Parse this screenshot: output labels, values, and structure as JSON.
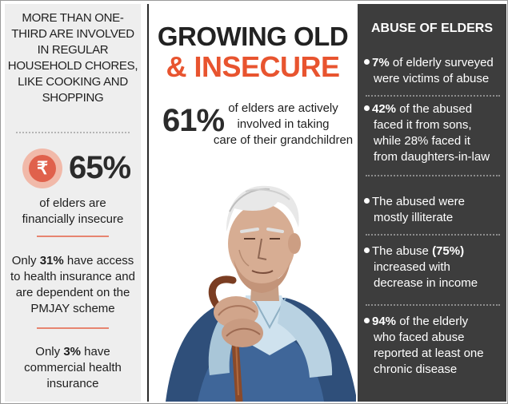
{
  "left": {
    "chores": [
      "MORE THAN ONE-",
      "THIRD ARE INVOLVED",
      "IN REGULAR",
      "HOUSEHOLD CHORES,",
      "LIKE COOKING AND",
      "SHOPPING"
    ],
    "rupee_symbol": "₹",
    "financial_pct": "65%",
    "financial_text": [
      "of elders are",
      "financially insecure"
    ],
    "health_prefix": "Only ",
    "health_pct": "31%",
    "health_suffix": " have access",
    "health_lines": [
      "to health insurance and",
      "are dependent on the",
      "PMJAY scheme"
    ],
    "commercial_prefix": "Only ",
    "commercial_pct": "3%",
    "commercial_suffix": " have",
    "commercial_lines": [
      "commercial health",
      "insurance"
    ]
  },
  "center": {
    "title_line1": "GROWING OLD",
    "title_line2": "& INSECURE",
    "grand_pct": "61%",
    "grand_text": [
      "of elders are actively",
      "involved in taking",
      "care of their grandchildren"
    ]
  },
  "right": {
    "title": "ABUSE OF ELDERS",
    "b1_pct": "7%",
    "b1_a": " of elderly surveyed",
    "b1_b": "were victims of abuse",
    "b2_pct": "42%",
    "b2_a": " of the abused",
    "b2_lines": [
      "faced it from sons,",
      "while 28% faced it",
      "from daughters-in-law"
    ],
    "b3_a": "The abused were",
    "b3_b": "mostly illiterate",
    "b4_a": "The abuse ",
    "b4_pct": "(75%)",
    "b4_lines": [
      "increased with",
      "decrease in income"
    ],
    "b5_pct": "94%",
    "b5_a": " of the elderly",
    "b5_lines": [
      "who faced abuse",
      "reported at least one",
      "chronic disease"
    ]
  },
  "colors": {
    "accent": "#e8542f",
    "dark_panel": "#3d3d3d",
    "light_panel": "#eeeeee",
    "coin": "#e0614c"
  },
  "icons": {
    "rupee": "rupee-coin-icon",
    "illustration": "elderly-man-with-cane-illustration"
  }
}
